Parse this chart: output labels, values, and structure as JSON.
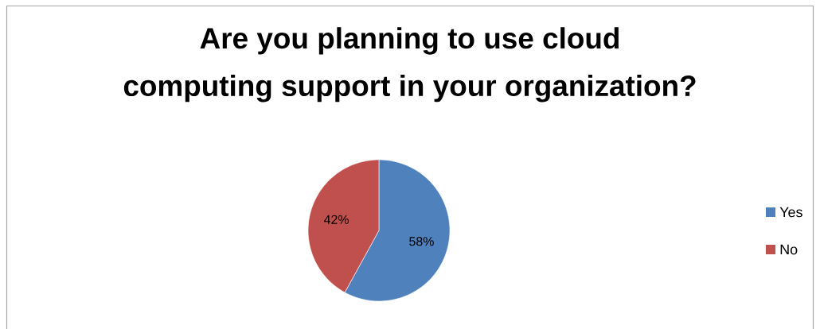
{
  "chart_data": {
    "type": "pie",
    "title": "Are you planning to use cloud computing support in your organization?",
    "categories": [
      "Yes",
      "No"
    ],
    "values": [
      58,
      42
    ],
    "colors": [
      "#4f81bd",
      "#c0504d"
    ],
    "value_labels": [
      "58%",
      "42%"
    ],
    "legend": "right"
  }
}
